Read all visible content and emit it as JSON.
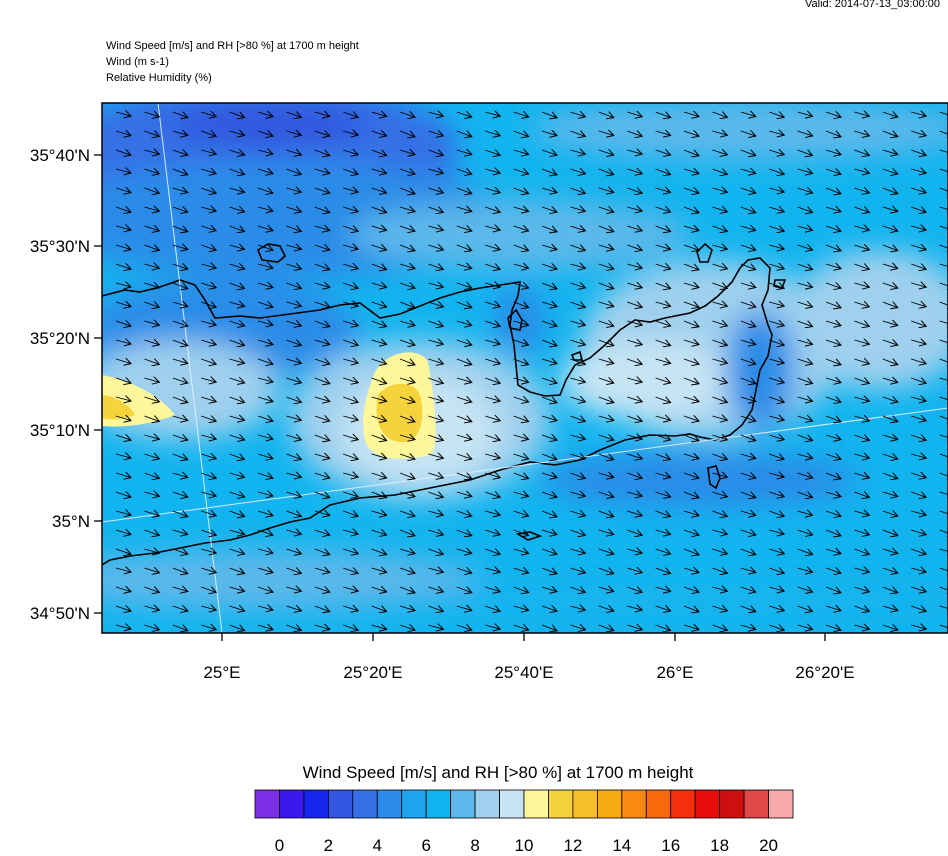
{
  "header": {
    "valid": "Valid: 2014-07-13_03:00:00",
    "line1": "Wind Speed [m/s] and RH [>80 %] at 1700 m height",
    "line2": "Wind   (m s-1)",
    "line3": "Relative Humidity   (%)"
  },
  "map": {
    "lat_labels": [
      "35°40'N",
      "35°30'N",
      "35°20'N",
      "35°10'N",
      "35°N",
      "34°50'N"
    ],
    "lon_labels": [
      "25°E",
      "25°20'E",
      "25°40'E",
      "26°E",
      "26°20'E"
    ]
  },
  "colorbar": {
    "title": "Wind Speed [m/s] and RH [>80 %] at 1700 m height",
    "colors": [
      "#7b2ee6",
      "#3b18ee",
      "#1726ee",
      "#3256df",
      "#3570e6",
      "#2a8ce8",
      "#1ea4f0",
      "#12b4ef",
      "#5cb8ea",
      "#9fd0ee",
      "#c6e4f4",
      "#fbf79a",
      "#f7d33b",
      "#f7bf2a",
      "#f8aa13",
      "#f88b0f",
      "#f86a0d",
      "#f52f0e",
      "#e80b0b",
      "#cc1010",
      "#e04848",
      "#f7a8a8"
    ],
    "labels": [
      "0",
      "2",
      "4",
      "6",
      "8",
      "10",
      "12",
      "14",
      "16",
      "18",
      "20"
    ]
  }
}
